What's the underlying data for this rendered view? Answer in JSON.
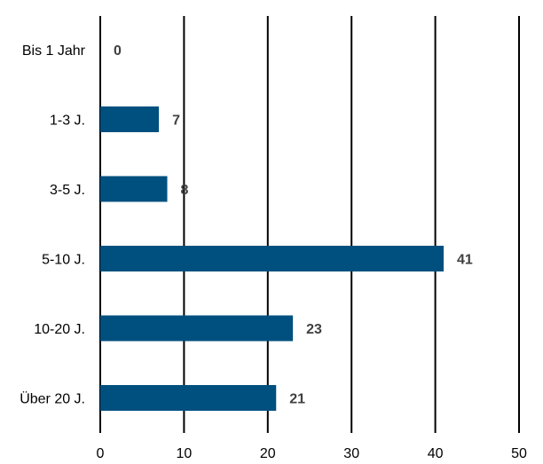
{
  "chart_data": {
    "type": "bar",
    "orientation": "horizontal",
    "categories": [
      "Bis 1 Jahr",
      "1-3 J.",
      "3-5 J.",
      "5-10 J.",
      "10-20 J.",
      "Über 20 J."
    ],
    "values": [
      0,
      7,
      8,
      41,
      23,
      21
    ],
    "data_labels": [
      "0",
      "7",
      "8",
      "41",
      "23",
      "21"
    ],
    "x_ticks": [
      "0",
      "10",
      "20",
      "30",
      "40",
      "50"
    ],
    "xlim": [
      0,
      50
    ],
    "title": "",
    "xlabel": "",
    "ylabel": "",
    "grid": "vertical",
    "legend": "none",
    "bar_color": "#00507f",
    "grid_color": "#000000",
    "label_color": "#404040"
  }
}
